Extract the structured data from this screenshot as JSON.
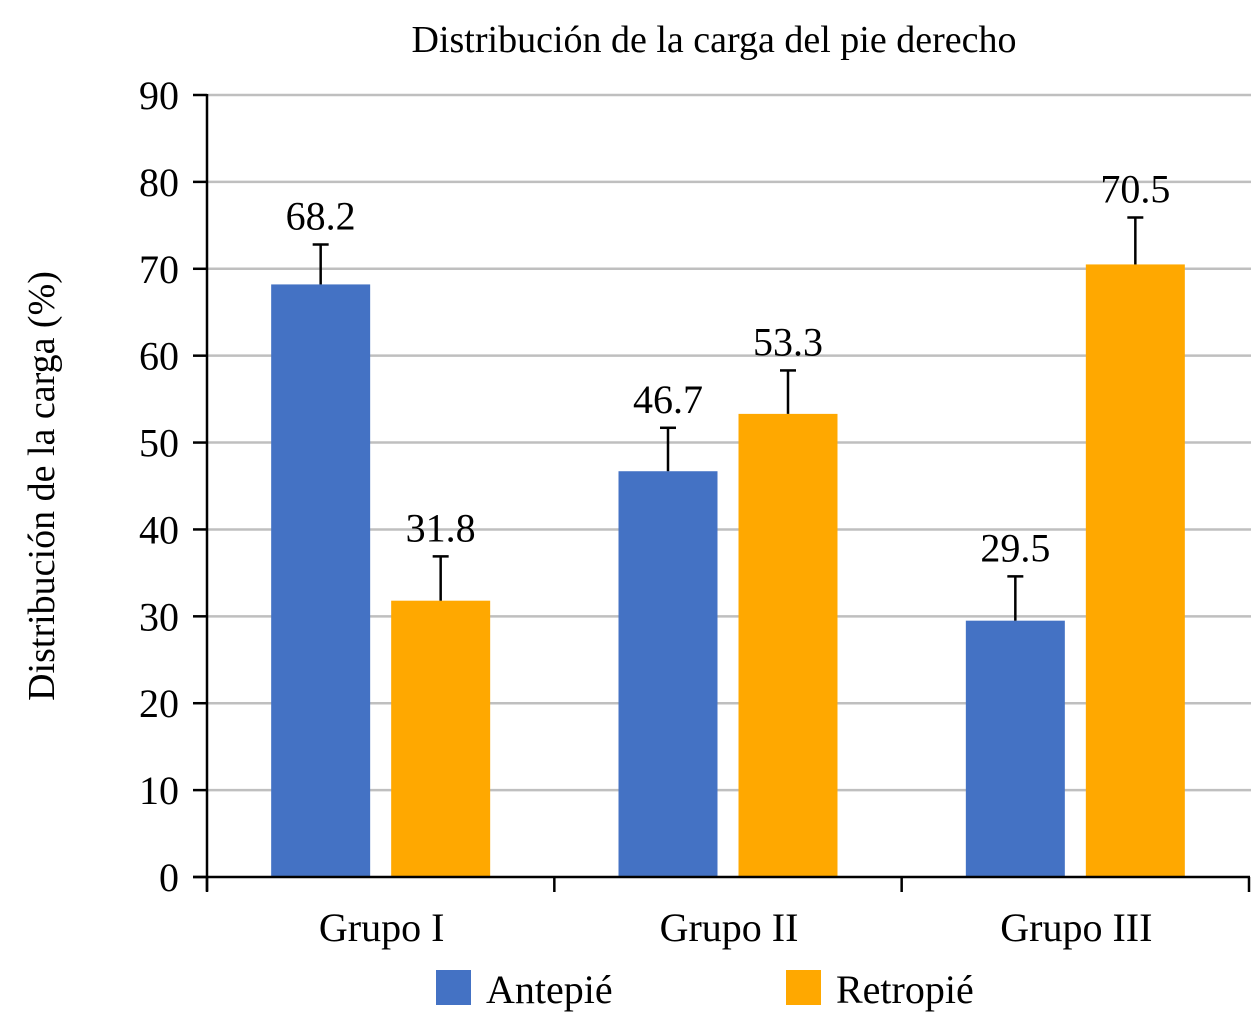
{
  "chart_data": {
    "type": "bar",
    "title": "Distribución de la carga del pie derecho",
    "xlabel": "",
    "ylabel": "Distribución de la carga (%)",
    "ylim": [
      0,
      90
    ],
    "yticks": [
      0,
      10,
      20,
      30,
      40,
      50,
      60,
      70,
      80,
      90
    ],
    "ytick_labels": [
      "0",
      "10",
      "20",
      "30",
      "40",
      "50",
      "60",
      "70",
      "80",
      "90"
    ],
    "grid": true,
    "categories": [
      "Grupo I",
      "Grupo II",
      "Grupo III"
    ],
    "series": [
      {
        "name": "Antepié",
        "color": "#4472C4",
        "values": [
          68.2,
          46.7,
          29.5
        ],
        "value_labels": [
          "68.2",
          "46.7",
          "29.5"
        ],
        "error": [
          4.6,
          5.0,
          5.1
        ]
      },
      {
        "name": "Retropié",
        "color": "#FFA800",
        "values": [
          31.8,
          53.3,
          70.5
        ],
        "value_labels": [
          "31.8",
          "53.3",
          "70.5"
        ],
        "error": [
          5.1,
          5.0,
          5.4
        ]
      }
    ],
    "legend": {
      "position": "bottom"
    }
  }
}
